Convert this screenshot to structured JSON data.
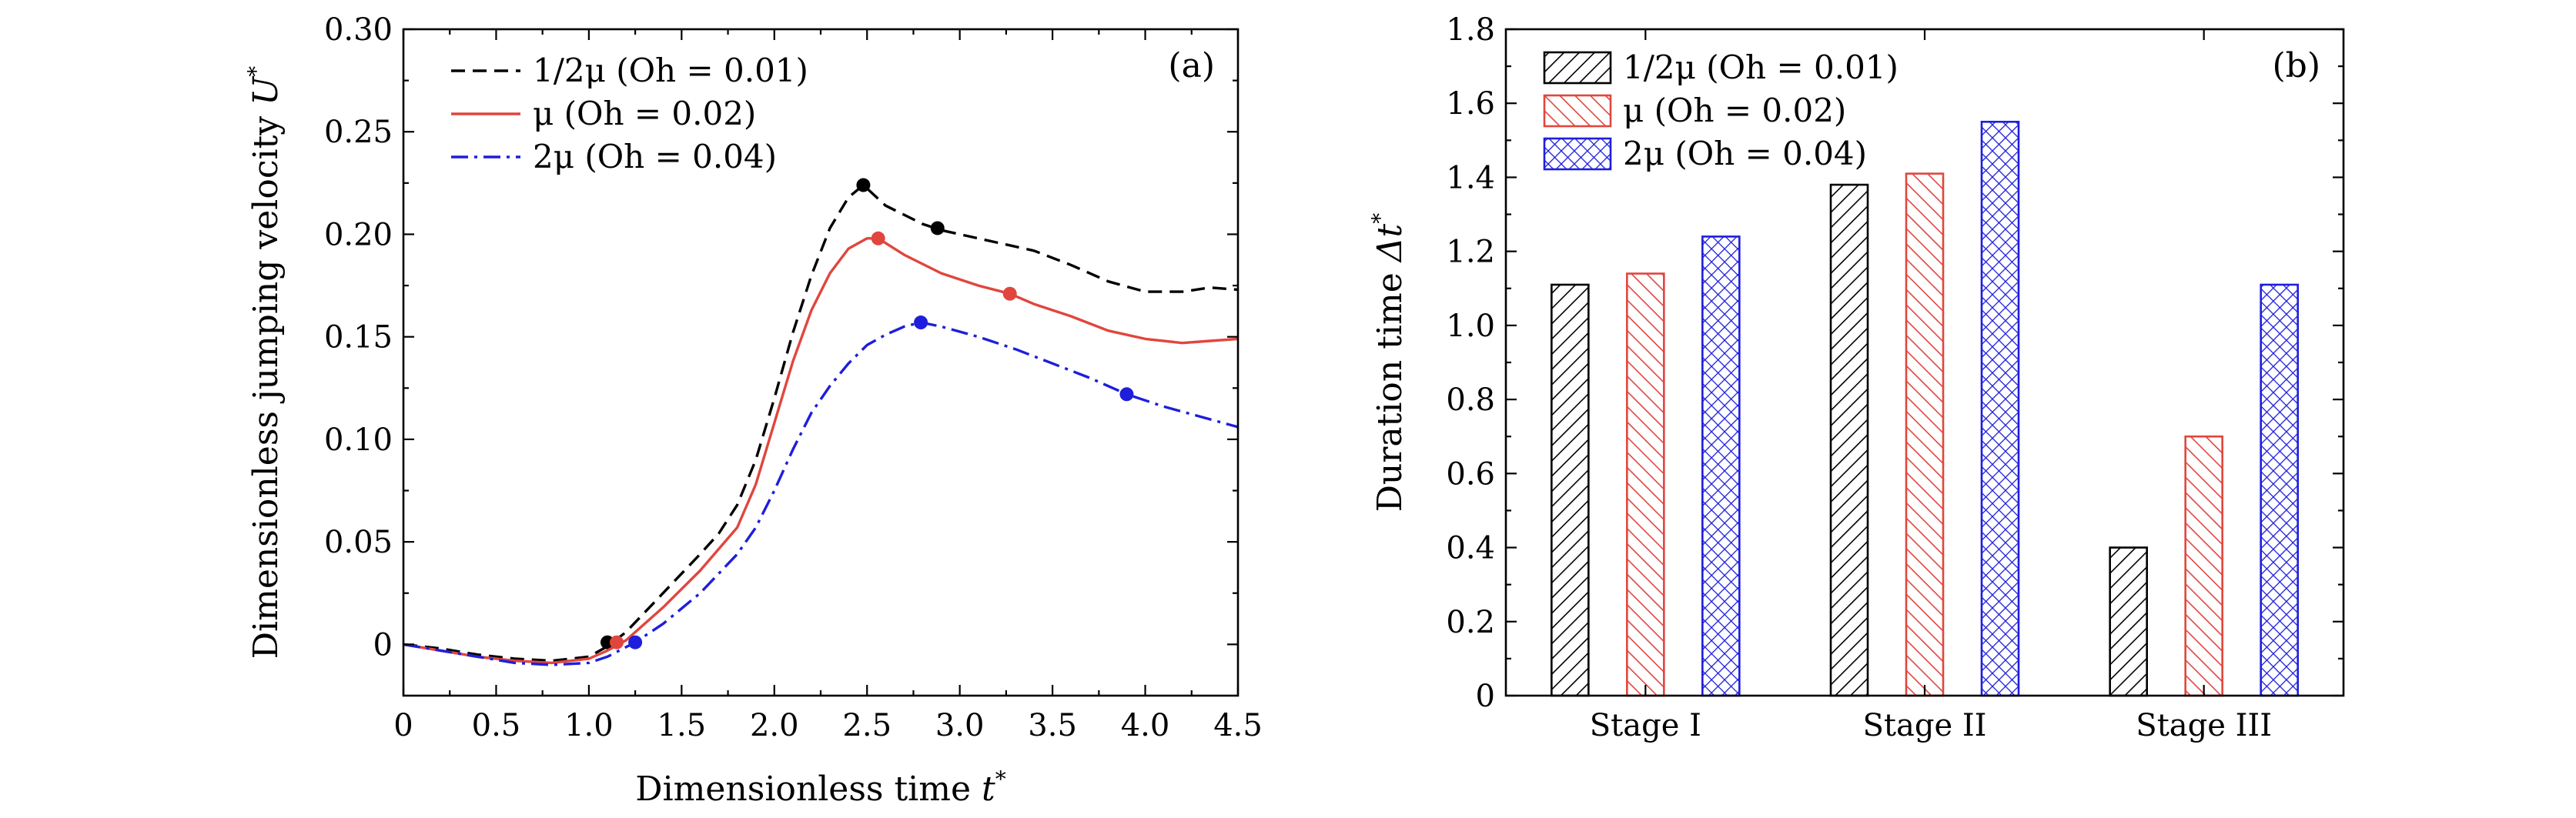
{
  "chart_data": [
    {
      "type": "line",
      "panel_tag": "(a)",
      "xlabel": "Dimensionless time",
      "xlabel_symbol": "t",
      "ylabel": "Dimensionless jumping velocity",
      "ylabel_symbol": "U",
      "xlim": [
        0,
        4.5
      ],
      "ylim": [
        -0.025,
        0.3
      ],
      "xticks": [
        0,
        0.5,
        1.0,
        1.5,
        2.0,
        2.5,
        3.0,
        3.5,
        4.0,
        4.5
      ],
      "xtick_labels": [
        "0",
        "0.5",
        "1.0",
        "1.5",
        "2.0",
        "2.5",
        "3.0",
        "3.5",
        "4.0",
        "4.5"
      ],
      "yticks": [
        0,
        0.05,
        0.1,
        0.15,
        0.2,
        0.25,
        0.3
      ],
      "ytick_labels": [
        "0",
        "0.05",
        "0.10",
        "0.15",
        "0.20",
        "0.25",
        "0.30"
      ],
      "legend_position": "top-left",
      "series": [
        {
          "name": "1/2μ (Oh = 0.01)",
          "color": "#000000",
          "dash": "dashed",
          "x": [
            0,
            0.2,
            0.4,
            0.6,
            0.8,
            1.0,
            1.1,
            1.2,
            1.4,
            1.6,
            1.7,
            1.8,
            1.9,
            2.0,
            2.1,
            2.2,
            2.3,
            2.4,
            2.48,
            2.6,
            2.8,
            2.9,
            3.0,
            3.2,
            3.4,
            3.6,
            3.8,
            4.0,
            4.2,
            4.35,
            4.5
          ],
          "y": [
            0,
            -0.002,
            -0.005,
            -0.007,
            -0.008,
            -0.006,
            -0.001,
            0.006,
            0.025,
            0.044,
            0.054,
            0.068,
            0.09,
            0.12,
            0.152,
            0.18,
            0.203,
            0.218,
            0.224,
            0.214,
            0.205,
            0.202,
            0.2,
            0.196,
            0.192,
            0.185,
            0.177,
            0.172,
            0.172,
            0.174,
            0.173
          ],
          "markers": [
            [
              1.1,
              0.001
            ],
            [
              2.48,
              0.224
            ],
            [
              2.88,
              0.203
            ]
          ]
        },
        {
          "name": "μ (Oh = 0.02)",
          "color": "#e0463e",
          "dash": "solid",
          "x": [
            0,
            0.2,
            0.4,
            0.6,
            0.8,
            1.0,
            1.1,
            1.2,
            1.3,
            1.4,
            1.6,
            1.8,
            1.9,
            2.0,
            2.1,
            2.2,
            2.3,
            2.4,
            2.5,
            2.56,
            2.7,
            2.9,
            3.1,
            3.27,
            3.4,
            3.6,
            3.8,
            4.0,
            4.2,
            4.35,
            4.5
          ],
          "y": [
            0,
            -0.003,
            -0.006,
            -0.008,
            -0.009,
            -0.007,
            -0.003,
            0.002,
            0.01,
            0.018,
            0.036,
            0.057,
            0.078,
            0.108,
            0.138,
            0.163,
            0.181,
            0.193,
            0.198,
            0.198,
            0.19,
            0.181,
            0.175,
            0.171,
            0.166,
            0.16,
            0.153,
            0.149,
            0.147,
            0.148,
            0.149
          ],
          "markers": [
            [
              1.15,
              0.001
            ],
            [
              2.56,
              0.198
            ],
            [
              3.27,
              0.171
            ]
          ]
        },
        {
          "name": "2μ (Oh = 0.04)",
          "color": "#1e1edc",
          "dash": "dashdot",
          "x": [
            0,
            0.2,
            0.4,
            0.6,
            0.8,
            1.0,
            1.1,
            1.25,
            1.4,
            1.6,
            1.8,
            1.9,
            2.0,
            2.1,
            2.2,
            2.3,
            2.4,
            2.5,
            2.6,
            2.7,
            2.79,
            2.9,
            3.1,
            3.3,
            3.5,
            3.7,
            3.9,
            4.1,
            4.3,
            4.5
          ],
          "y": [
            0,
            -0.003,
            -0.006,
            -0.009,
            -0.01,
            -0.009,
            -0.006,
            0.001,
            0.01,
            0.025,
            0.044,
            0.057,
            0.075,
            0.095,
            0.113,
            0.126,
            0.137,
            0.146,
            0.151,
            0.155,
            0.157,
            0.155,
            0.15,
            0.144,
            0.137,
            0.13,
            0.122,
            0.116,
            0.111,
            0.106
          ],
          "markers": [
            [
              1.25,
              0.001
            ],
            [
              2.79,
              0.157
            ],
            [
              3.9,
              0.122
            ]
          ]
        }
      ]
    },
    {
      "type": "bar",
      "panel_tag": "(b)",
      "xlabel": "",
      "ylabel": "Duration time",
      "ylabel_symbol": "Δt",
      "ylim": [
        0,
        1.8
      ],
      "yticks": [
        0,
        0.2,
        0.4,
        0.6,
        0.8,
        1.0,
        1.2,
        1.4,
        1.6,
        1.8
      ],
      "ytick_labels": [
        "0",
        "0.2",
        "0.4",
        "0.6",
        "0.8",
        "1.0",
        "1.2",
        "1.4",
        "1.6",
        "1.8"
      ],
      "categories": [
        "Stage I",
        "Stage II",
        "Stage III"
      ],
      "legend_position": "top-left",
      "series": [
        {
          "name": "1/2μ (Oh = 0.01)",
          "color": "#000000",
          "pattern": "diagonal-right",
          "values": [
            1.11,
            1.38,
            0.4
          ]
        },
        {
          "name": "μ (Oh = 0.02)",
          "color": "#e0463e",
          "pattern": "diagonal-left",
          "values": [
            1.14,
            1.41,
            0.7
          ]
        },
        {
          "name": "2μ (Oh = 0.04)",
          "color": "#1e1edc",
          "pattern": "crosshatch",
          "values": [
            1.24,
            1.55,
            1.11
          ]
        }
      ]
    }
  ]
}
